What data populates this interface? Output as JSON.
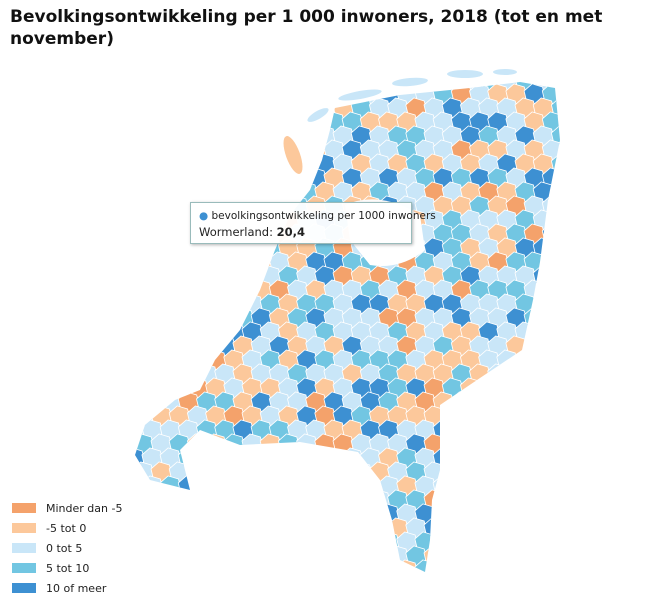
{
  "header": {
    "title": "Bevolkingsontwikkeling per 1 000 inwoners, 2018 (tot en met november)"
  },
  "tooltip": {
    "series": "bevolkingsontwikkeling per 1000 inwoners",
    "region": "Wormerland:",
    "value": "20,4"
  },
  "legend": {
    "items": [
      {
        "label": "Minder dan -5",
        "color": "#f4a26b"
      },
      {
        "label": "-5 tot 0",
        "color": "#fcc89b"
      },
      {
        "label": "0 tot 5",
        "color": "#c9e6f8"
      },
      {
        "label": "5 tot 10",
        "color": "#72c6e2"
      },
      {
        "label": "10 of meer",
        "color": "#3d90d2"
      }
    ]
  }
}
